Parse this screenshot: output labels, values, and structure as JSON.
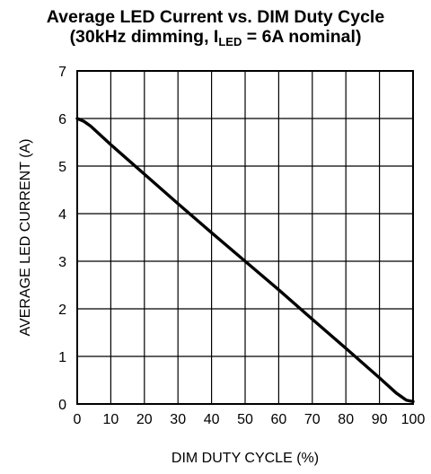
{
  "chart_data": {
    "type": "line",
    "title_line1": "Average LED Current vs. DIM Duty Cycle",
    "title_line2_prefix": "(30kHz dimming, I",
    "title_line2_sub": "LED",
    "title_line2_suffix": " = 6A nominal)",
    "xlabel": "DIM DUTY CYCLE (%)",
    "ylabel": "AVERAGE LED CURRENT (A)",
    "xlim": [
      0,
      100
    ],
    "ylim": [
      0,
      7
    ],
    "xticks": [
      0,
      10,
      20,
      30,
      40,
      50,
      60,
      70,
      80,
      90,
      100
    ],
    "yticks": [
      0,
      1,
      2,
      3,
      4,
      5,
      6,
      7
    ],
    "grid": true,
    "series": [
      {
        "x": [
          0,
          2,
          4,
          10,
          20,
          30,
          40,
          50,
          60,
          70,
          80,
          90,
          95,
          98,
          100
        ],
        "y": [
          6.0,
          5.94,
          5.84,
          5.45,
          4.83,
          4.21,
          3.6,
          3.0,
          2.4,
          1.78,
          1.17,
          0.55,
          0.23,
          0.08,
          0.05
        ]
      }
    ],
    "line_color": "#000000"
  }
}
